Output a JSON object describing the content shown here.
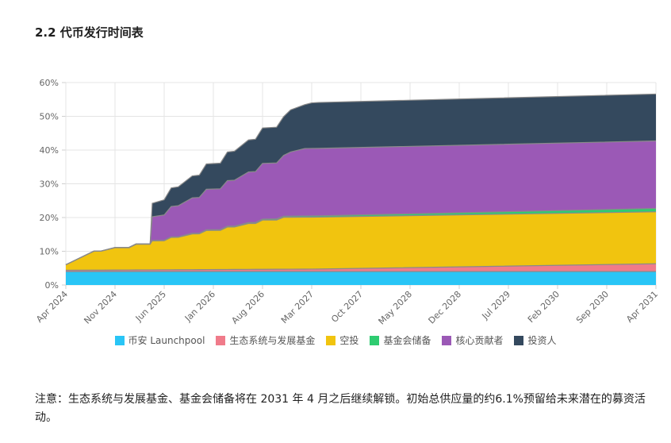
{
  "heading": "2.2 代币发行时间表",
  "note": "注意：生态系统与发展基金、基金会储备将在 2031 年 4 月之后继续解锁。初始总供应量的约6.1%预留给未来潜在的募资活动。",
  "chart_data": {
    "type": "area",
    "stacked": true,
    "x_unit": "months since Apr 2024",
    "y_unit": "% of total supply",
    "ylim": [
      0,
      60
    ],
    "yticks": [
      "0%",
      "10%",
      "20%",
      "30%",
      "40%",
      "50%",
      "60%"
    ],
    "xticks": [
      "Apr 2024",
      "Nov 2024",
      "Jun 2025",
      "Jan 2026",
      "Aug 2026",
      "Mar 2027",
      "Oct 2027",
      "May 2028",
      "Dec 2028",
      "Jul 2029",
      "Feb 2030",
      "Sep 2030",
      "Apr 2031"
    ],
    "x": [
      0,
      4,
      5,
      7,
      9,
      10,
      11,
      12,
      12.3,
      14,
      15,
      16,
      18,
      19,
      20,
      22,
      23,
      24,
      26,
      27,
      28,
      30,
      31,
      32,
      34,
      35,
      36,
      84
    ],
    "series": [
      {
        "name": "币安 Launchpool",
        "color": "#29c5f6",
        "values": [
          4.0,
          4.0,
          4.0,
          4.0,
          4.0,
          4.0,
          4.0,
          4.0,
          4.0,
          4.0,
          4.0,
          4.0,
          4.0,
          4.0,
          4.0,
          4.0,
          4.0,
          4.0,
          4.0,
          4.0,
          4.0,
          4.0,
          4.0,
          4.0,
          4.0,
          4.0,
          4.0,
          4.0
        ]
      },
      {
        "name": "生态系统与发展基金",
        "color": "#f07b8a",
        "values": [
          0.4,
          0.42,
          0.42,
          0.44,
          0.46,
          0.47,
          0.48,
          0.49,
          0.49,
          0.51,
          0.52,
          0.53,
          0.55,
          0.56,
          0.57,
          0.59,
          0.6,
          0.61,
          0.63,
          0.64,
          0.65,
          0.67,
          0.68,
          0.69,
          0.71,
          0.72,
          0.73,
          2.3
        ]
      },
      {
        "name": "空投",
        "color": "#f1c40f",
        "values": [
          1.6,
          5.6,
          5.6,
          6.6,
          6.6,
          7.6,
          7.6,
          7.6,
          8.6,
          8.6,
          9.6,
          9.6,
          10.6,
          10.6,
          11.6,
          11.6,
          12.6,
          12.6,
          13.6,
          13.6,
          14.6,
          14.6,
          15.4,
          15.4,
          15.4,
          15.4,
          15.4,
          15.4
        ]
      },
      {
        "name": "基金会储备",
        "color": "#2ecc71",
        "values": [
          0.02,
          0.05,
          0.06,
          0.08,
          0.1,
          0.11,
          0.12,
          0.13,
          0.13,
          0.15,
          0.16,
          0.17,
          0.19,
          0.2,
          0.21,
          0.23,
          0.24,
          0.25,
          0.27,
          0.28,
          0.29,
          0.31,
          0.32,
          0.33,
          0.35,
          0.36,
          0.37,
          1.0
        ]
      },
      {
        "name": "核心贡献者",
        "color": "#9b59b6",
        "values": [
          0,
          0,
          0,
          0,
          0,
          0,
          0,
          0,
          7.0,
          7.5,
          9.0,
          9.2,
          10.5,
          10.6,
          12.0,
          12.1,
          13.5,
          13.6,
          15.0,
          15.1,
          16.5,
          16.6,
          18.0,
          19.0,
          20.0,
          20.0,
          20.0,
          20.0
        ]
      },
      {
        "name": "投资人",
        "color": "#34495e",
        "values": [
          0,
          0,
          0,
          0,
          0,
          0,
          0,
          0,
          4.0,
          4.5,
          5.5,
          5.6,
          6.5,
          6.6,
          7.5,
          7.6,
          8.5,
          8.6,
          9.5,
          9.6,
          10.5,
          10.6,
          11.5,
          12.5,
          13.0,
          13.5,
          13.6,
          13.9
        ]
      }
    ]
  }
}
